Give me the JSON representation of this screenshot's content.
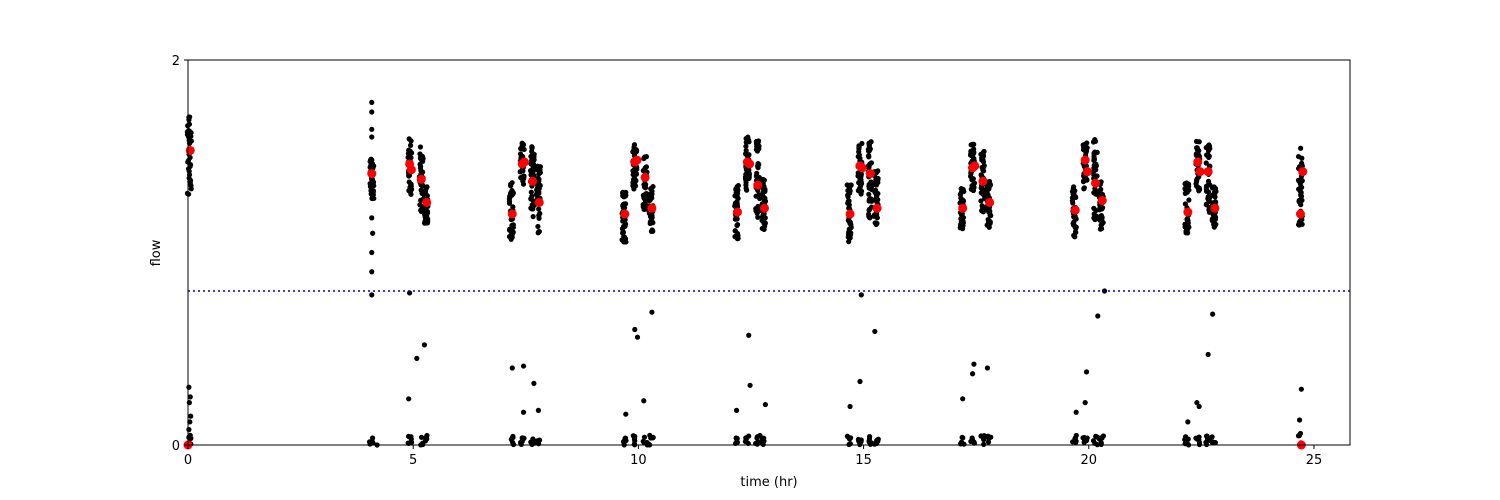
{
  "chart_data": {
    "type": "scatter",
    "xlabel": "time (hr)",
    "ylabel": "flow",
    "xlim": [
      0,
      25.8
    ],
    "ylim": [
      0,
      2
    ],
    "xticks": [
      0,
      5,
      10,
      15,
      20,
      25
    ],
    "yticks": [
      0,
      2
    ],
    "grid": false,
    "reference_line": {
      "y": 0.8,
      "style": "dotted",
      "color": "#0000cc"
    },
    "colors": {
      "raw": "#000000",
      "means": "#ff0000"
    },
    "clusters": [
      {
        "x": 0.03,
        "low": 1.3,
        "high": 1.72
      },
      {
        "x": 4.08,
        "low": 1.28,
        "high": 1.5
      },
      {
        "x": 4.92,
        "low": 1.3,
        "high": 1.6
      },
      {
        "x": 5.18,
        "low": 1.2,
        "high": 1.55
      },
      {
        "x": 5.28,
        "low": 1.15,
        "high": 1.35
      },
      {
        "x": 7.18,
        "low": 1.06,
        "high": 1.37
      },
      {
        "x": 7.42,
        "low": 1.35,
        "high": 1.57
      },
      {
        "x": 7.65,
        "low": 1.18,
        "high": 1.55
      },
      {
        "x": 7.78,
        "low": 1.1,
        "high": 1.45
      },
      {
        "x": 9.68,
        "low": 1.05,
        "high": 1.32
      },
      {
        "x": 9.92,
        "low": 1.33,
        "high": 1.58
      },
      {
        "x": 10.15,
        "low": 1.22,
        "high": 1.5
      },
      {
        "x": 10.28,
        "low": 1.1,
        "high": 1.35
      },
      {
        "x": 12.18,
        "low": 1.07,
        "high": 1.37
      },
      {
        "x": 12.42,
        "low": 1.32,
        "high": 1.6
      },
      {
        "x": 12.65,
        "low": 1.18,
        "high": 1.58
      },
      {
        "x": 12.78,
        "low": 1.12,
        "high": 1.38
      },
      {
        "x": 14.68,
        "low": 1.05,
        "high": 1.36
      },
      {
        "x": 14.92,
        "low": 1.3,
        "high": 1.57
      },
      {
        "x": 15.15,
        "low": 1.18,
        "high": 1.58
      },
      {
        "x": 15.28,
        "low": 1.1,
        "high": 1.43
      },
      {
        "x": 17.18,
        "low": 1.12,
        "high": 1.34
      },
      {
        "x": 17.42,
        "low": 1.32,
        "high": 1.57
      },
      {
        "x": 17.65,
        "low": 1.2,
        "high": 1.53
      },
      {
        "x": 17.78,
        "low": 1.13,
        "high": 1.37
      },
      {
        "x": 19.68,
        "low": 1.08,
        "high": 1.35
      },
      {
        "x": 19.92,
        "low": 1.3,
        "high": 1.58
      },
      {
        "x": 20.15,
        "low": 1.17,
        "high": 1.6
      },
      {
        "x": 20.28,
        "low": 1.12,
        "high": 1.37
      },
      {
        "x": 22.18,
        "low": 1.1,
        "high": 1.37
      },
      {
        "x": 22.42,
        "low": 1.32,
        "high": 1.58
      },
      {
        "x": 22.65,
        "low": 1.2,
        "high": 1.58
      },
      {
        "x": 22.78,
        "low": 1.13,
        "high": 1.35
      },
      {
        "x": 24.7,
        "low": 1.12,
        "high": 1.55
      }
    ],
    "isolated_points": [
      {
        "x": 0.02,
        "y": 0.3
      },
      {
        "x": 0.05,
        "y": 0.25
      },
      {
        "x": 0.03,
        "y": 0.22
      },
      {
        "x": 0.06,
        "y": 0.15
      },
      {
        "x": 0.04,
        "y": 0.12
      },
      {
        "x": 0.02,
        "y": 0.08
      },
      {
        "x": 0.05,
        "y": 0.05
      },
      {
        "x": 4.08,
        "y": 1.78
      },
      {
        "x": 4.08,
        "y": 1.73
      },
      {
        "x": 4.08,
        "y": 1.64
      },
      {
        "x": 4.08,
        "y": 1.6
      },
      {
        "x": 4.08,
        "y": 1.18
      },
      {
        "x": 4.1,
        "y": 1.1
      },
      {
        "x": 4.08,
        "y": 1.0
      },
      {
        "x": 4.08,
        "y": 0.9
      },
      {
        "x": 4.08,
        "y": 0.78
      },
      {
        "x": 4.1,
        "y": 0.01
      },
      {
        "x": 4.2,
        "y": 0.0
      },
      {
        "x": 4.92,
        "y": 0.79
      },
      {
        "x": 5.08,
        "y": 0.45
      },
      {
        "x": 5.25,
        "y": 0.52
      },
      {
        "x": 4.9,
        "y": 0.24
      },
      {
        "x": 7.2,
        "y": 0.4
      },
      {
        "x": 7.45,
        "y": 0.41
      },
      {
        "x": 7.68,
        "y": 0.32
      },
      {
        "x": 7.78,
        "y": 0.18
      },
      {
        "x": 7.45,
        "y": 0.17
      },
      {
        "x": 9.92,
        "y": 0.6
      },
      {
        "x": 9.98,
        "y": 0.56
      },
      {
        "x": 10.3,
        "y": 0.69
      },
      {
        "x": 9.72,
        "y": 0.16
      },
      {
        "x": 10.12,
        "y": 0.23
      },
      {
        "x": 12.45,
        "y": 0.57
      },
      {
        "x": 12.48,
        "y": 0.31
      },
      {
        "x": 12.18,
        "y": 0.18
      },
      {
        "x": 12.82,
        "y": 0.21
      },
      {
        "x": 14.95,
        "y": 0.78
      },
      {
        "x": 15.25,
        "y": 0.59
      },
      {
        "x": 14.92,
        "y": 0.33
      },
      {
        "x": 14.7,
        "y": 0.2
      },
      {
        "x": 17.42,
        "y": 0.37
      },
      {
        "x": 17.45,
        "y": 0.42
      },
      {
        "x": 17.75,
        "y": 0.4
      },
      {
        "x": 17.2,
        "y": 0.24
      },
      {
        "x": 20.35,
        "y": 0.8
      },
      {
        "x": 20.2,
        "y": 0.67
      },
      {
        "x": 19.95,
        "y": 0.38
      },
      {
        "x": 19.72,
        "y": 0.17
      },
      {
        "x": 19.92,
        "y": 0.22
      },
      {
        "x": 22.75,
        "y": 0.68
      },
      {
        "x": 22.65,
        "y": 0.47
      },
      {
        "x": 22.45,
        "y": 0.2
      },
      {
        "x": 22.4,
        "y": 0.22
      },
      {
        "x": 22.2,
        "y": 0.12
      },
      {
        "x": 24.72,
        "y": 0.29
      },
      {
        "x": 24.68,
        "y": 0.13
      },
      {
        "x": 24.7,
        "y": 0.06
      }
    ],
    "means": [
      {
        "x": 0.05,
        "y": 1.53
      },
      {
        "x": 4.08,
        "y": 1.41
      },
      {
        "x": 4.92,
        "y": 1.46
      },
      {
        "x": 4.96,
        "y": 1.43
      },
      {
        "x": 5.18,
        "y": 1.38
      },
      {
        "x": 5.3,
        "y": 1.26
      },
      {
        "x": 7.2,
        "y": 1.2
      },
      {
        "x": 7.42,
        "y": 1.46
      },
      {
        "x": 7.47,
        "y": 1.47
      },
      {
        "x": 7.65,
        "y": 1.37
      },
      {
        "x": 7.8,
        "y": 1.26
      },
      {
        "x": 9.7,
        "y": 1.2
      },
      {
        "x": 9.92,
        "y": 1.47
      },
      {
        "x": 9.97,
        "y": 1.48
      },
      {
        "x": 10.15,
        "y": 1.39
      },
      {
        "x": 10.3,
        "y": 1.23
      },
      {
        "x": 12.2,
        "y": 1.21
      },
      {
        "x": 12.42,
        "y": 1.47
      },
      {
        "x": 12.47,
        "y": 1.46
      },
      {
        "x": 12.65,
        "y": 1.35
      },
      {
        "x": 12.8,
        "y": 1.23
      },
      {
        "x": 14.7,
        "y": 1.2
      },
      {
        "x": 14.92,
        "y": 1.45
      },
      {
        "x": 14.97,
        "y": 1.44
      },
      {
        "x": 15.15,
        "y": 1.41
      },
      {
        "x": 15.3,
        "y": 1.23
      },
      {
        "x": 17.2,
        "y": 1.23
      },
      {
        "x": 17.42,
        "y": 1.44
      },
      {
        "x": 17.47,
        "y": 1.45
      },
      {
        "x": 17.65,
        "y": 1.37
      },
      {
        "x": 17.8,
        "y": 1.26
      },
      {
        "x": 19.7,
        "y": 1.22
      },
      {
        "x": 19.92,
        "y": 1.48
      },
      {
        "x": 19.97,
        "y": 1.42
      },
      {
        "x": 20.15,
        "y": 1.36
      },
      {
        "x": 20.3,
        "y": 1.27
      },
      {
        "x": 22.2,
        "y": 1.21
      },
      {
        "x": 22.42,
        "y": 1.47
      },
      {
        "x": 22.47,
        "y": 1.42
      },
      {
        "x": 22.65,
        "y": 1.42
      },
      {
        "x": 22.8,
        "y": 1.23
      },
      {
        "x": 24.7,
        "y": 1.2
      },
      {
        "x": 24.75,
        "y": 1.42
      },
      {
        "x": 0.0,
        "y": 0.0
      },
      {
        "x": 24.72,
        "y": 0.0
      }
    ]
  }
}
